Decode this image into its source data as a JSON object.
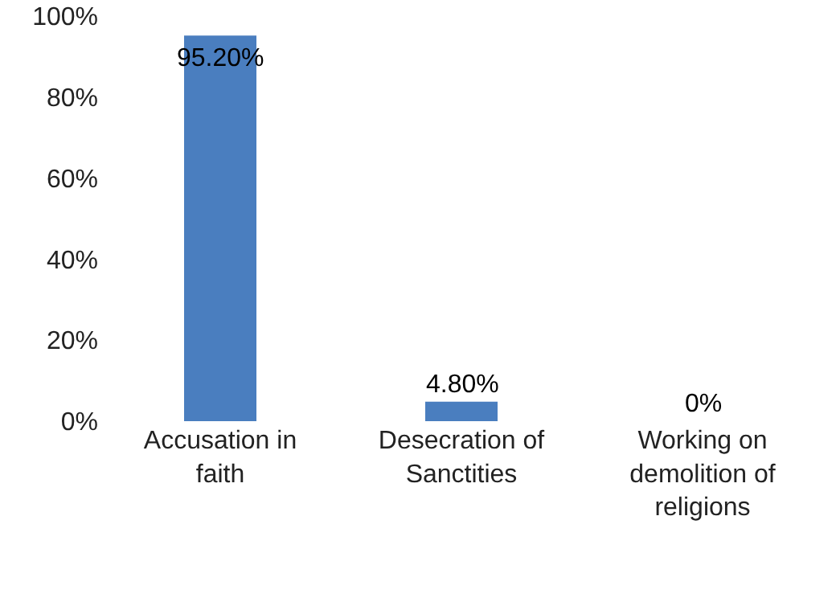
{
  "chart_data": {
    "type": "bar",
    "categories": [
      "Accusation in faith",
      "Desecration of Sanctities",
      "Working on demolition of religions"
    ],
    "values": [
      95.2,
      4.8,
      0
    ],
    "value_labels": [
      "95.20%",
      "4.80%",
      "0%"
    ],
    "color": "#4a7ebf",
    "ylim": [
      0,
      100
    ],
    "yticks": [
      {
        "value": 0,
        "label": "0%"
      },
      {
        "value": 20,
        "label": "20%"
      },
      {
        "value": 40,
        "label": "40%"
      },
      {
        "value": 60,
        "label": "60%"
      },
      {
        "value": 80,
        "label": "80%"
      },
      {
        "value": 100,
        "label": "100%"
      }
    ],
    "grid": false,
    "legend": false
  }
}
